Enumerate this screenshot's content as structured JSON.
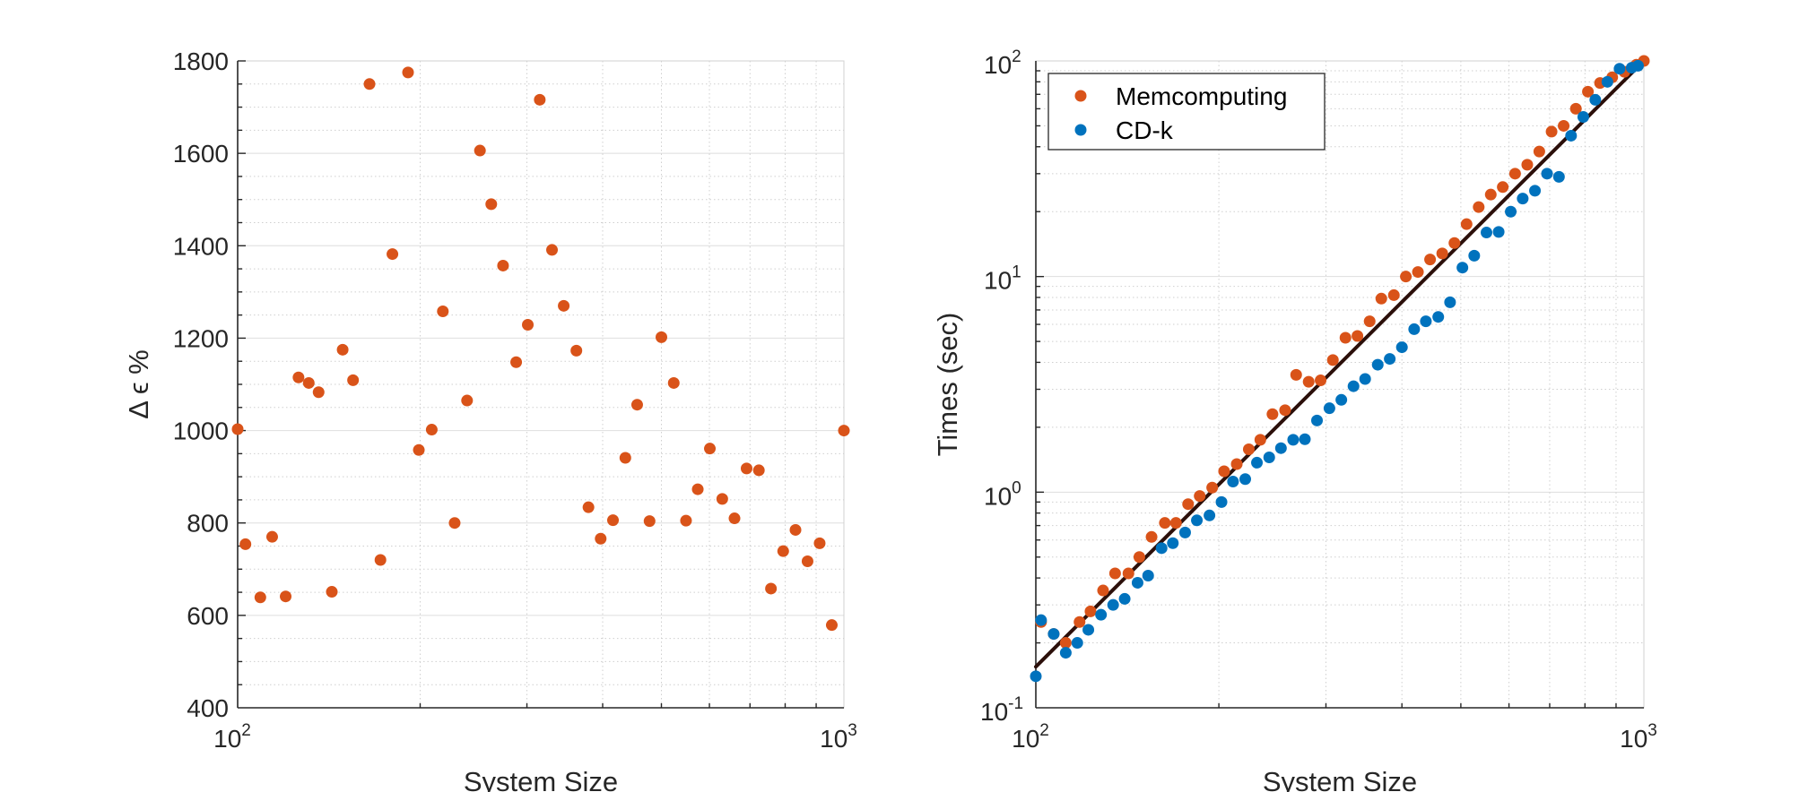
{
  "colors": {
    "memcomputing": "#D95319",
    "cdk": "#0072BD",
    "fit": "#2b0f0a"
  },
  "chart_data": [
    {
      "type": "scatter",
      "xscale": "log",
      "xlim": [
        100,
        1000
      ],
      "ylim": [
        400,
        1800
      ],
      "grid": true,
      "xlabel": "System Size",
      "ylabel": "Δ ϵ %",
      "xtick_labels": [
        "10",
        "10"
      ],
      "xtick_exps": [
        "2",
        "3"
      ],
      "ytick_labels": [
        "400",
        "600",
        "800",
        "1000",
        "1200",
        "1400",
        "1600",
        "1800"
      ],
      "series": [
        {
          "x": [
            100,
            103,
            109,
            114,
            120,
            126,
            131,
            136,
            143,
            149,
            155,
            165,
            172,
            180,
            191,
            199,
            209,
            218,
            228,
            239,
            251,
            262,
            274,
            288,
            301,
            315,
            330,
            345,
            362,
            379,
            397,
            416,
            436,
            456,
            478,
            500,
            524,
            549,
            574,
            601,
            630,
            660,
            691,
            724,
            758,
            794,
            832,
            871,
            912,
            955,
            1000
          ],
          "y": [
            1003,
            754,
            639,
            770,
            641,
            1115,
            1103,
            1083,
            651,
            1175,
            1109,
            1750,
            720,
            1382,
            1775,
            958,
            1002,
            1258,
            800,
            1065,
            1606,
            1490,
            1357,
            1148,
            1229,
            1716,
            1391,
            1270,
            1173,
            834,
            766,
            806,
            941,
            1056,
            804,
            1202,
            1103,
            805,
            873,
            961,
            852,
            810,
            918,
            914,
            658,
            739,
            785,
            717,
            756,
            579,
            1000
          ]
        }
      ]
    },
    {
      "type": "scatter",
      "xscale": "log",
      "yscale": "log",
      "xlim": [
        100,
        1000
      ],
      "ylim": [
        0.1,
        100
      ],
      "grid": true,
      "legend_position": "top-left",
      "xlabel": "System Size",
      "ylabel": "Times (sec)",
      "xtick_labels": [
        "10",
        "10"
      ],
      "xtick_exps": [
        "2",
        "3"
      ],
      "ytick_labels": [
        "10",
        "10",
        "10",
        "10"
      ],
      "ytick_exps": [
        "-1",
        "0",
        "1",
        "2"
      ],
      "fit_line": {
        "x": [
          100,
          1000
        ],
        "y": [
          0.155,
          100
        ]
      },
      "series": [
        {
          "name": "Memcomputing",
          "x": [
            102,
            107,
            112,
            118,
            123,
            129,
            135,
            142,
            148,
            155,
            163,
            170,
            178,
            186,
            195,
            204,
            214,
            224,
            234,
            245,
            257,
            268,
            281,
            294,
            308,
            323,
            338,
            354,
            370,
            388,
            406,
            425,
            445,
            466,
            488,
            511,
            535,
            560,
            586,
            614,
            643,
            673,
            705,
            738,
            773,
            809,
            847,
            887,
            929,
            972,
            1000
          ],
          "y": [
            0.25,
            0.22,
            0.2,
            0.25,
            0.28,
            0.35,
            0.42,
            0.42,
            0.5,
            0.62,
            0.72,
            0.72,
            0.88,
            0.96,
            1.05,
            1.25,
            1.35,
            1.58,
            1.75,
            2.3,
            2.4,
            3.5,
            3.25,
            3.3,
            4.1,
            5.2,
            5.3,
            6.2,
            7.9,
            8.2,
            10,
            10.5,
            12,
            12.8,
            14.3,
            17.5,
            21,
            24,
            26,
            30,
            33,
            38,
            47,
            50,
            60,
            72,
            79,
            84,
            89,
            96,
            100
          ]
        },
        {
          "name": "CD-k",
          "x": [
            100,
            102,
            107,
            112,
            117,
            122,
            128,
            134,
            140,
            147,
            153,
            161,
            168,
            176,
            184,
            193,
            202,
            211,
            221,
            231,
            242,
            253,
            265,
            277,
            290,
            304,
            318,
            333,
            348,
            365,
            382,
            400,
            419,
            438,
            459,
            480,
            503,
            526,
            551,
            577,
            604,
            632,
            662,
            693,
            725,
            759,
            795,
            832,
            871,
            912,
            955,
            978
          ],
          "y": [
            0.14,
            0.255,
            0.22,
            0.18,
            0.2,
            0.23,
            0.27,
            0.3,
            0.32,
            0.38,
            0.41,
            0.55,
            0.58,
            0.65,
            0.74,
            0.78,
            0.9,
            1.12,
            1.15,
            1.37,
            1.45,
            1.6,
            1.75,
            1.76,
            2.15,
            2.45,
            2.68,
            3.1,
            3.35,
            3.9,
            4.15,
            4.7,
            5.7,
            6.2,
            6.5,
            7.6,
            11,
            12.5,
            16,
            16.1,
            20,
            23,
            25,
            30,
            29,
            45,
            55,
            66,
            80,
            92,
            93,
            95
          ]
        }
      ]
    }
  ]
}
